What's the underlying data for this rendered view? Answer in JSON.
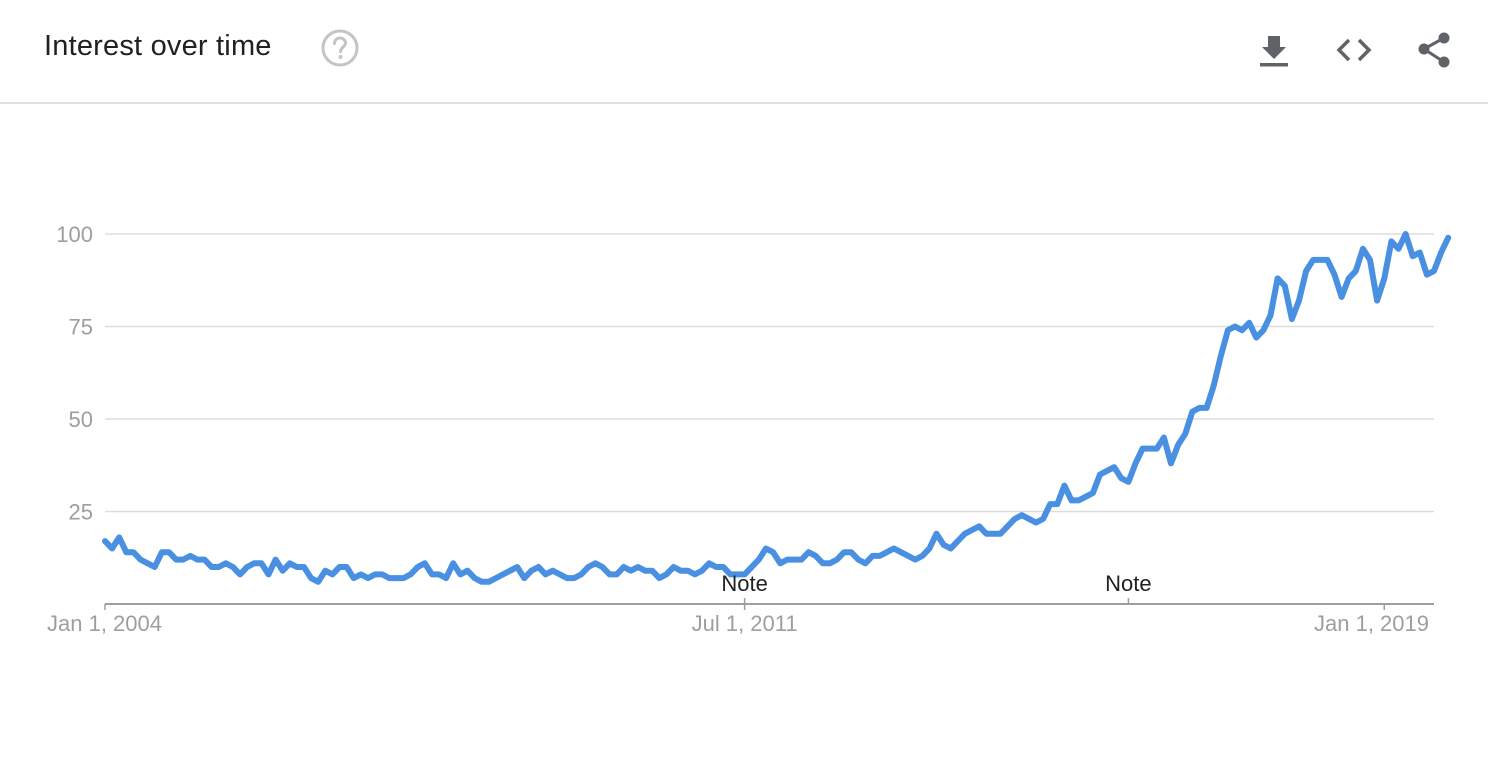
{
  "header": {
    "title": "Interest over time",
    "help_icon": "help-circle-icon",
    "actions": [
      {
        "name": "download",
        "icon": "download-icon"
      },
      {
        "name": "embed",
        "icon": "code-brackets-icon"
      },
      {
        "name": "share",
        "icon": "share-icon"
      }
    ]
  },
  "colors": {
    "series": "#4a90e2",
    "grid": "#dddddd",
    "axis": "#9e9e9e",
    "icon": "#5f6368",
    "help": "#c4c4c4"
  },
  "chart_data": {
    "type": "line",
    "title": "",
    "xlabel": "",
    "ylabel": "",
    "ylim": [
      0,
      100
    ],
    "yticks": [
      25,
      50,
      75,
      100
    ],
    "xlim": [
      "2004-01",
      "2019-08"
    ],
    "xticks": [
      {
        "x": "2004-01",
        "label": "Jan 1, 2004"
      },
      {
        "x": "2011-07",
        "label": "Jul 1, 2011"
      },
      {
        "x": "2019-01",
        "label": "Jan 1, 2019"
      }
    ],
    "annotations": [
      {
        "x": "2011-07",
        "label": "Note"
      },
      {
        "x": "2016-01",
        "label": "Note"
      }
    ],
    "grid": true,
    "legend": "none",
    "start": "2004-01",
    "frequency": "monthly",
    "series": [
      {
        "values": [
          17,
          15,
          18,
          14,
          14,
          12,
          11,
          10,
          14,
          14,
          12,
          12,
          13,
          12,
          12,
          10,
          10,
          11,
          10,
          8,
          10,
          11,
          11,
          8,
          12,
          9,
          11,
          10,
          10,
          7,
          6,
          9,
          8,
          10,
          10,
          7,
          8,
          7,
          8,
          8,
          7,
          7,
          7,
          8,
          10,
          11,
          8,
          8,
          7,
          11,
          8,
          9,
          7,
          6,
          6,
          7,
          8,
          9,
          10,
          7,
          9,
          10,
          8,
          9,
          8,
          7,
          7,
          8,
          10,
          11,
          10,
          8,
          8,
          10,
          9,
          10,
          9,
          9,
          7,
          8,
          10,
          9,
          9,
          8,
          9,
          11,
          10,
          10,
          8,
          8,
          8,
          10,
          12,
          15,
          14,
          11,
          12,
          12,
          12,
          14,
          13,
          11,
          11,
          12,
          14,
          14,
          12,
          11,
          13,
          13,
          14,
          15,
          14,
          13,
          12,
          13,
          15,
          19,
          16,
          15,
          17,
          19,
          20,
          21,
          19,
          19,
          19,
          21,
          23,
          24,
          23,
          22,
          23,
          27,
          27,
          32,
          28,
          28,
          29,
          30,
          35,
          36,
          37,
          34,
          33,
          38,
          42,
          42,
          42,
          45,
          38,
          43,
          46,
          52,
          53,
          53,
          59,
          67,
          74,
          75,
          74,
          76,
          72,
          74,
          78,
          88,
          86,
          77,
          82,
          90,
          93,
          93,
          93,
          89,
          83,
          88,
          90,
          96,
          93,
          82,
          88,
          98,
          96,
          100,
          94,
          95,
          89,
          90,
          95,
          99
        ]
      }
    ]
  }
}
